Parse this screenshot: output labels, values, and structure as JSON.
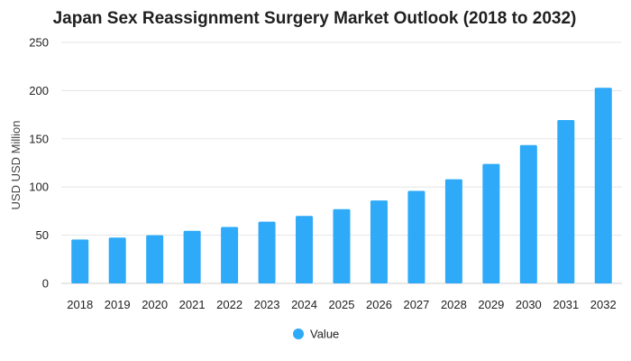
{
  "chart_data": {
    "type": "bar",
    "title": "Japan Sex Reassignment Surgery Market Outlook (2018 to 2032)",
    "xlabel": "",
    "ylabel": "USD USD Million",
    "categories": [
      "2018",
      "2019",
      "2020",
      "2021",
      "2022",
      "2023",
      "2024",
      "2025",
      "2026",
      "2027",
      "2028",
      "2029",
      "2030",
      "2031",
      "2032"
    ],
    "series": [
      {
        "name": "Value",
        "color": "#2eaaf8",
        "values": [
          45.5,
          47.5,
          50,
          54.5,
          58.5,
          64,
          70,
          77,
          86,
          96,
          108,
          124,
          143.5,
          169.5,
          203
        ]
      }
    ],
    "ylim": [
      0,
      250
    ],
    "yticks": [
      "0",
      "50",
      "100",
      "150",
      "200",
      "250"
    ],
    "grid": true,
    "legend": "bottom-center"
  }
}
